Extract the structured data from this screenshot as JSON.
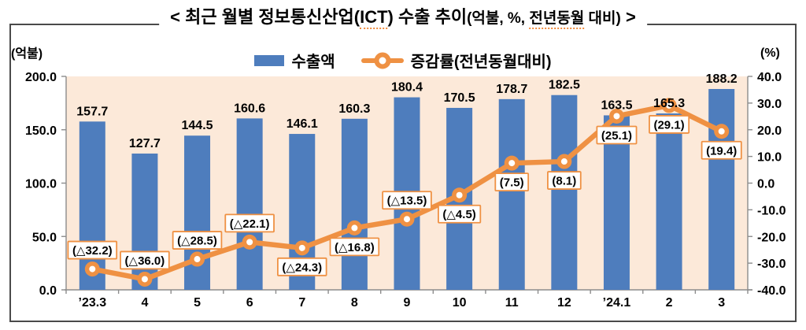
{
  "title": {
    "prefix": "< 최근 월별 정보통신산업(",
    "ict": "ICT",
    "mid": ") 수출 추이",
    "unit_pre": "(억불, %, ",
    "unit_marked": "전년동월",
    "unit_post": " 대비)",
    "close": " >"
  },
  "legend": {
    "bar_label": "수출액",
    "line_label": "증감률(전년동월대비)"
  },
  "colors": {
    "bar": "#4e7dbd",
    "line": "#ef9143",
    "plot_bg": "#fce9d9",
    "axis": "#8c8c8c",
    "frame_border": "#4a4a4a",
    "text": "#000000"
  },
  "chart_data": {
    "type": "bar+line",
    "title": "최근 월별 정보통신산업(ICT) 수출 추이(억불, %, 전년동월 대비)",
    "categories": [
      "’23.3",
      "4",
      "5",
      "6",
      "7",
      "8",
      "9",
      "10",
      "11",
      "12",
      "’24.1",
      "2",
      "3"
    ],
    "series": [
      {
        "name": "수출액",
        "type": "bar",
        "axis": "left",
        "values": [
          157.7,
          127.7,
          144.5,
          160.6,
          146.1,
          160.3,
          180.4,
          170.5,
          178.7,
          182.5,
          163.5,
          165.3,
          188.2
        ],
        "value_labels": [
          "157.7",
          "127.7",
          "144.5",
          "160.6",
          "146.1",
          "160.3",
          "180.4",
          "170.5",
          "178.7",
          "182.5",
          "163.5",
          "165.3",
          "188.2"
        ]
      },
      {
        "name": "증감률(전년동월대비)",
        "type": "line",
        "axis": "right",
        "values": [
          -32.2,
          -36.0,
          -28.5,
          -22.1,
          -24.3,
          -16.8,
          -13.5,
          -4.5,
          7.5,
          8.1,
          25.1,
          29.1,
          19.4
        ],
        "value_labels": [
          "(△32.2)",
          "(△36.0)",
          "(△28.5)",
          "(△22.1)",
          "(△24.3)",
          "(△16.8)",
          "(△13.5)",
          "(△4.5)",
          "(7.5)",
          "(8.1)",
          "(25.1)",
          "(29.1)",
          "(19.4)"
        ],
        "label_placement": [
          "above",
          "above",
          "above",
          "above",
          "below",
          "below",
          "above",
          "below",
          "below",
          "below",
          "below",
          "below",
          "below"
        ]
      }
    ],
    "left_axis": {
      "label": "(억불)",
      "min": 0,
      "max": 200,
      "tick_step": 50,
      "ticks": [
        "0.0",
        "50.0",
        "100.0",
        "150.0",
        "200.0"
      ]
    },
    "right_axis": {
      "label": "(%)",
      "min": -40,
      "max": 40,
      "tick_step": 10,
      "ticks": [
        "-40.0",
        "-30.0",
        "-20.0",
        "-10.0",
        "0.0",
        "10.0",
        "20.0",
        "30.0",
        "40.0"
      ]
    },
    "grid": false,
    "legend_position": "top"
  }
}
